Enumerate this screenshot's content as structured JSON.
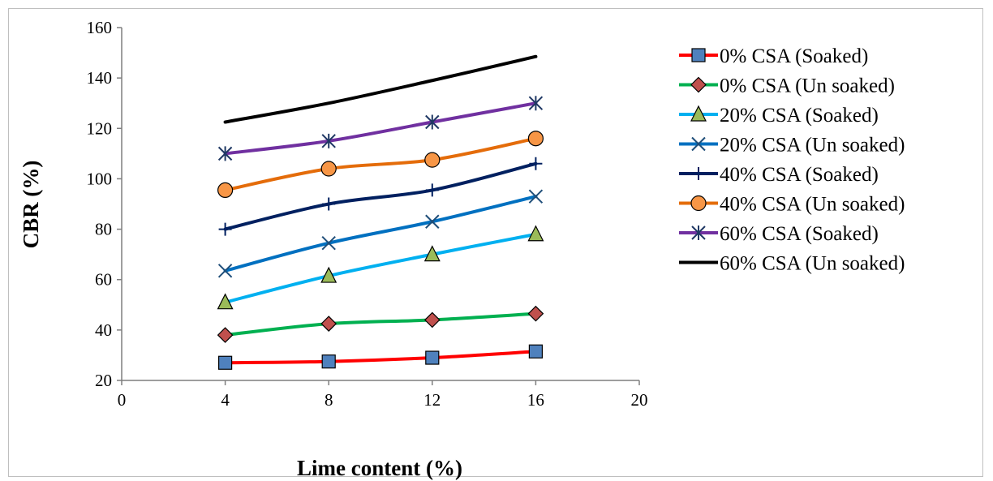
{
  "chart_data": {
    "type": "line",
    "xlabel": "Lime content (%)",
    "ylabel": "CBR (%)",
    "xlim": [
      0,
      20
    ],
    "ylim": [
      20,
      160
    ],
    "x_ticks": [
      0,
      4,
      8,
      12,
      16,
      20
    ],
    "y_ticks": [
      20,
      40,
      60,
      80,
      100,
      120,
      140,
      160
    ],
    "grid": false,
    "legend_position": "right",
    "x": [
      4,
      8,
      12,
      16
    ],
    "series": [
      {
        "name": "0% CSA (Soaked)",
        "values": [
          27,
          27.5,
          29,
          31.5
        ],
        "color": "#ff0000",
        "marker": "square",
        "marker_color": "#4f81bd"
      },
      {
        "name": "0% CSA (Un soaked)",
        "values": [
          38,
          42.5,
          44,
          46.5
        ],
        "color": "#00b050",
        "marker": "diamond",
        "marker_color": "#c0504d"
      },
      {
        "name": "20% CSA (Soaked)",
        "values": [
          51,
          61.5,
          70,
          78
        ],
        "color": "#00b0f0",
        "marker": "triangle",
        "marker_color": "#9bbb59"
      },
      {
        "name": "20% CSA (Un soaked)",
        "values": [
          63.5,
          74.5,
          83,
          93
        ],
        "color": "#0070c0",
        "marker": "x",
        "marker_color": "#1f4e79"
      },
      {
        "name": "40% CSA (Soaked)",
        "values": [
          80,
          90,
          95.5,
          106
        ],
        "color": "#002060",
        "marker": "plus",
        "marker_color": "#002060"
      },
      {
        "name": "40% CSA (Un soaked)",
        "values": [
          95.5,
          104,
          107.5,
          116
        ],
        "color": "#e46c0a",
        "marker": "circle",
        "marker_color": "#f79646"
      },
      {
        "name": "60% CSA (Soaked)",
        "values": [
          110,
          115,
          122.5,
          130
        ],
        "color": "#7030a0",
        "marker": "star",
        "marker_color": "#1f3864"
      },
      {
        "name": "60% CSA (Un soaked)",
        "values": [
          122.5,
          130,
          139,
          148.5
        ],
        "color": "#000000",
        "marker": "none",
        "marker_color": "#000000"
      }
    ]
  }
}
